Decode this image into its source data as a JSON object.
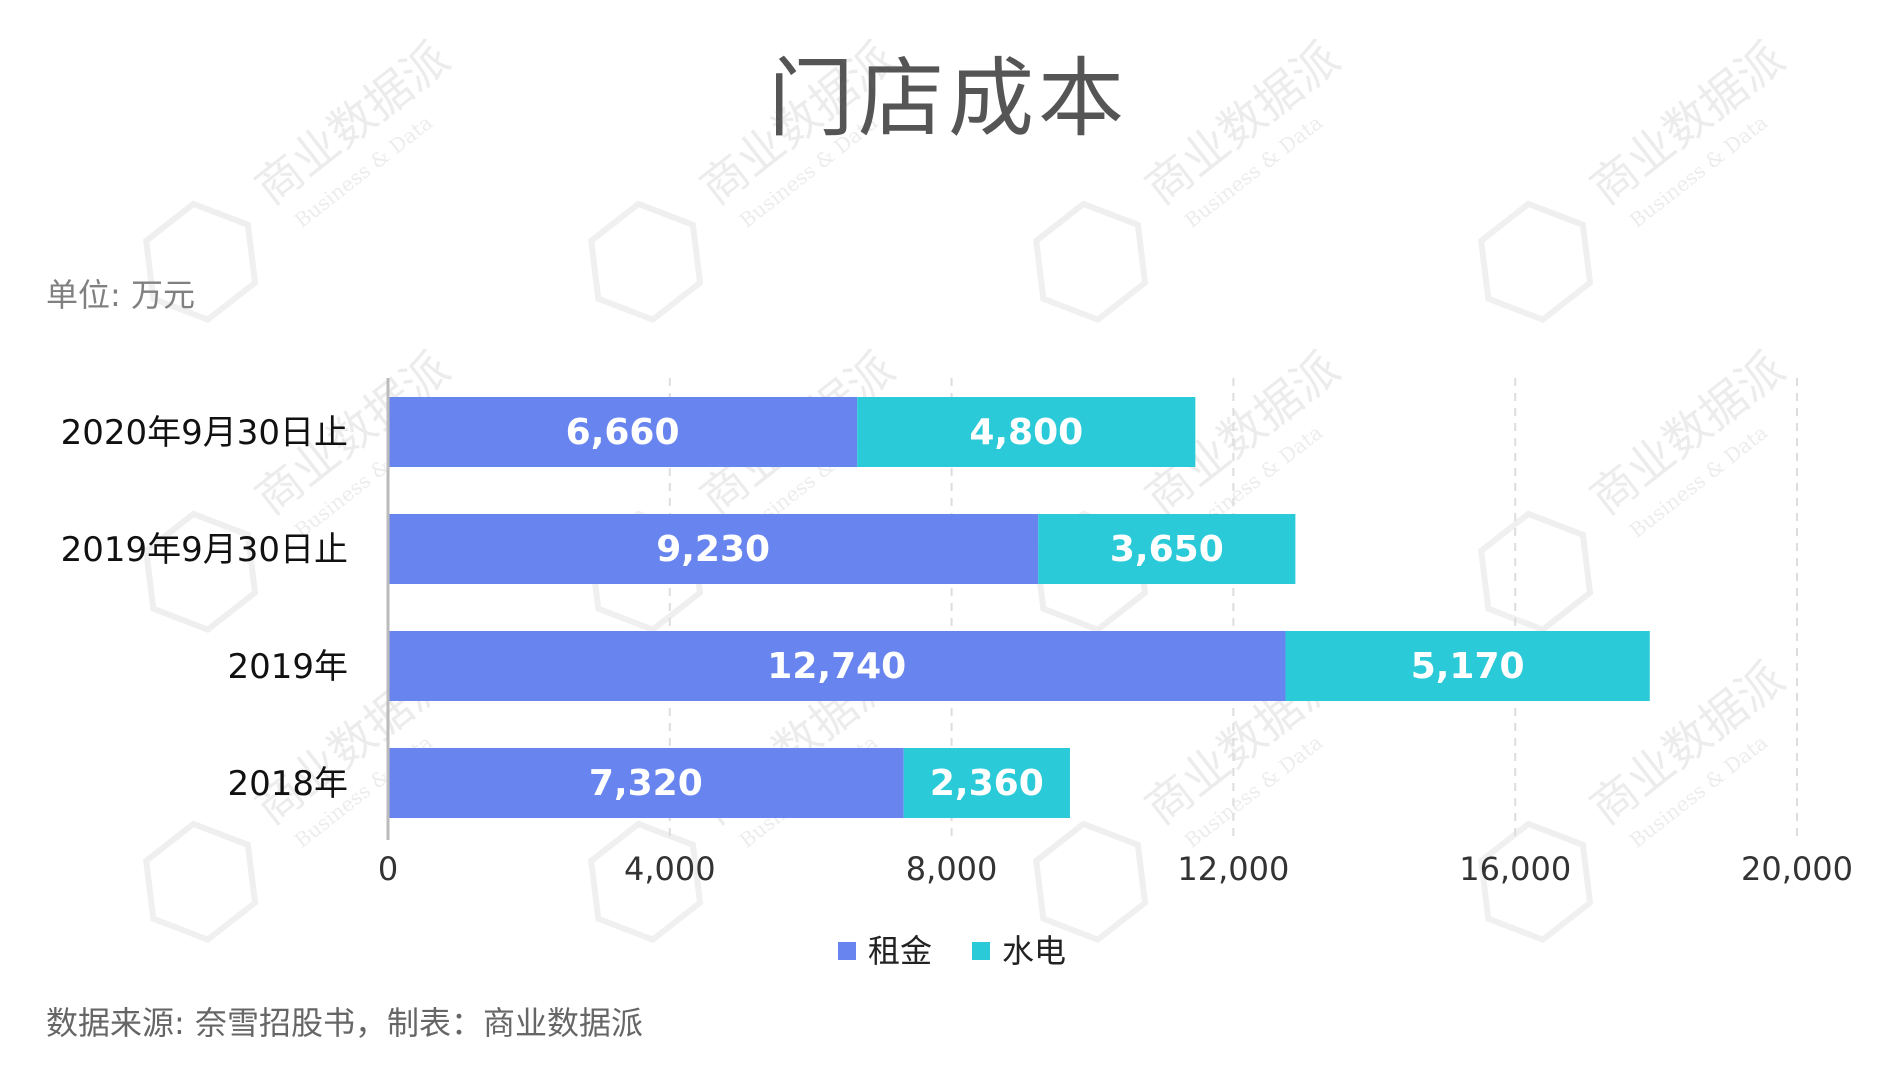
{
  "title": "门店成本",
  "unit_label": "单位: 万元",
  "source_label": "数据来源: 奈雪招股书，制表：商业数据派",
  "watermark": {
    "name": "商业数据派",
    "sub": "Business & Data"
  },
  "colors": {
    "rent": "#6884EE",
    "utilities": "#2ACAD8",
    "axis": "#BBBBBB",
    "grid": "#DDDDDD",
    "label": "#ffffff"
  },
  "chart_data": {
    "type": "bar",
    "orientation": "horizontal",
    "stacked": true,
    "categories": [
      "2020年9月30日止",
      "2019年9月30日止",
      "2019年",
      "2018年"
    ],
    "series": [
      {
        "name": "租金",
        "values": [
          6660,
          9230,
          12740,
          7320
        ],
        "value_labels": [
          "6,660",
          "9,230",
          "12,740",
          "7,320"
        ]
      },
      {
        "name": "水电",
        "values": [
          4800,
          3650,
          5170,
          2360
        ],
        "value_labels": [
          "4,800",
          "3,650",
          "5,170",
          "2,360"
        ]
      }
    ],
    "x_ticks": [
      0,
      4000,
      8000,
      12000,
      16000,
      20000
    ],
    "x_tick_labels": [
      "0",
      "4,000",
      "8,000",
      "12,000",
      "16,000",
      "20,000"
    ],
    "xlim": [
      0,
      20000
    ],
    "grid": true,
    "legend": "bottom-center"
  }
}
